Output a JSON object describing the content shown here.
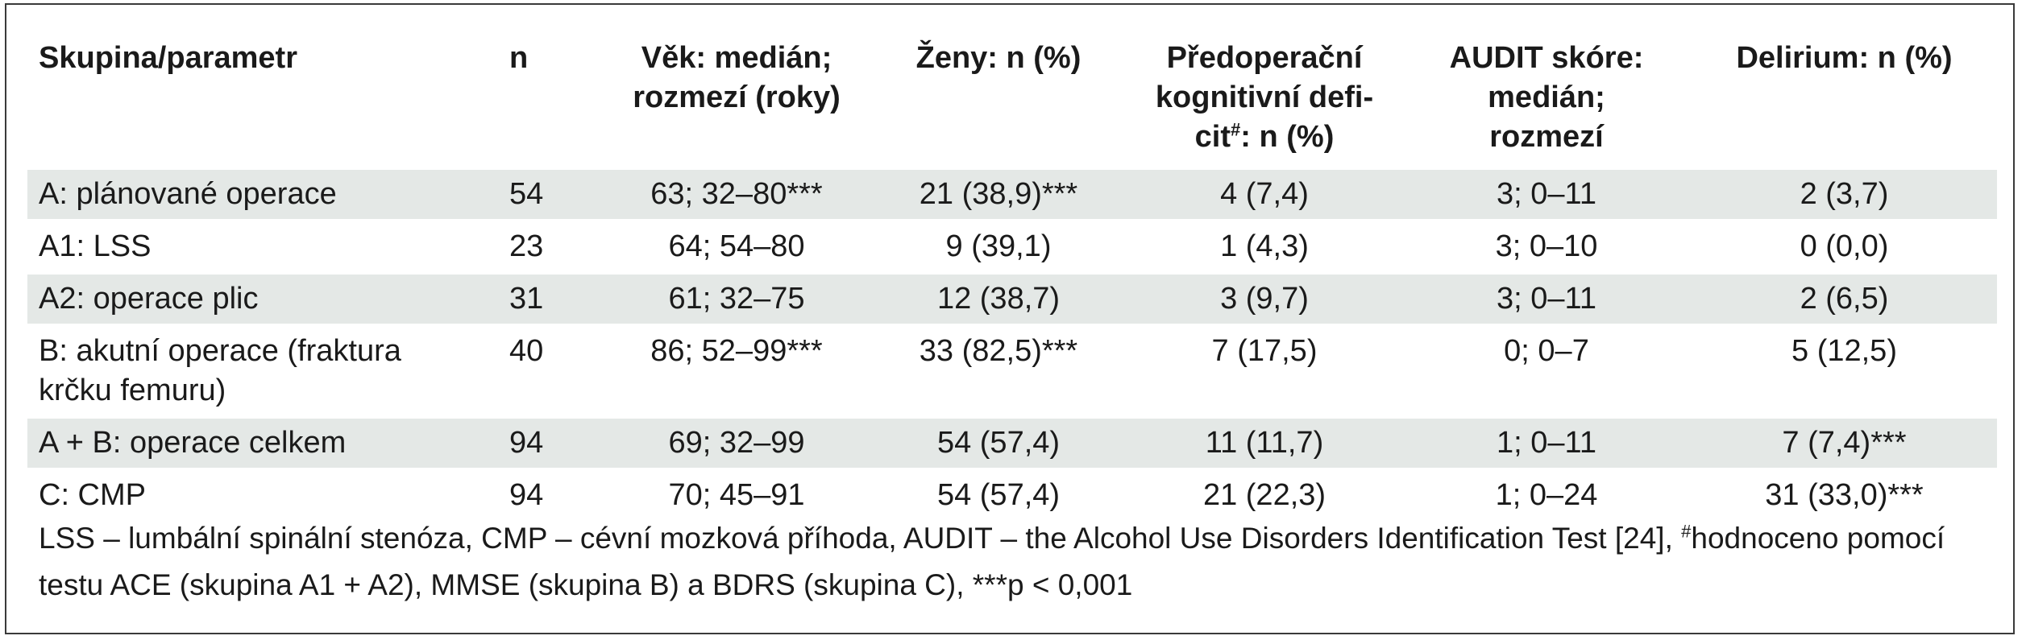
{
  "table": {
    "headers": {
      "group": "Skupina/parametr",
      "n": "n",
      "age_line1": "Věk: medián;",
      "age_line2": "rozmezí (roky)",
      "women": "Ženy: n (%)",
      "deficit_line1": "Předoperační",
      "deficit_line2": "kognitivní defi-",
      "deficit_line3a": "cit",
      "deficit_sup": "#",
      "deficit_line3b": ": n (%)",
      "audit_line1": "AUDIT skóre:",
      "audit_line2": "medián;",
      "audit_line3": "rozmezí",
      "delirium": "Delirium: n (%)"
    },
    "rows": [
      {
        "group": "A: plánované operace",
        "n": "54",
        "age": "63; 32–80***",
        "women": "21 (38,9)***",
        "deficit": "4 (7,4)",
        "audit": "3; 0–11",
        "delirium": "2 (3,7)"
      },
      {
        "group": "A1: LSS",
        "n": "23",
        "age": "64; 54–80",
        "women": "9 (39,1)",
        "deficit": "1 (4,3)",
        "audit": "3; 0–10",
        "delirium": "0 (0,0)"
      },
      {
        "group": "A2: operace plic",
        "n": "31",
        "age": "61; 32–75",
        "women": "12 (38,7)",
        "deficit": "3 (9,7)",
        "audit": "3; 0–11",
        "delirium": "2 (6,5)"
      },
      {
        "group_line1": "B: akutní operace (fraktura",
        "group_line2": "krčku femuru)",
        "n": "40",
        "age": "86; 52–99***",
        "women": "33 (82,5)***",
        "deficit": "7 (17,5)",
        "audit": "0; 0–7",
        "delirium": "5 (12,5)"
      },
      {
        "group": "A + B: operace celkem",
        "n": "94",
        "age": "69; 32–99",
        "women": "54 (57,4)",
        "deficit": "11 (11,7)",
        "audit": "1; 0–11",
        "delirium": "7 (7,4)***"
      },
      {
        "group": "C: CMP",
        "n": "94",
        "age": "70; 45–91",
        "women": "54 (57,4)",
        "deficit": "21 (22,3)",
        "audit": "1; 0–24",
        "delirium": "31 (33,0)***"
      }
    ]
  },
  "note": {
    "part1": "LSS – lumbální spinální stenóza, CMP – cévní mozková příhoda, AUDIT – the Alcohol Use Disorders Identification Test [24], ",
    "sup": "#",
    "part2": "hodnoceno pomocí testu ACE (skupina A1 + A2), MMSE (skupina B) a BDRS (skupina C), ***p < 0,001"
  }
}
